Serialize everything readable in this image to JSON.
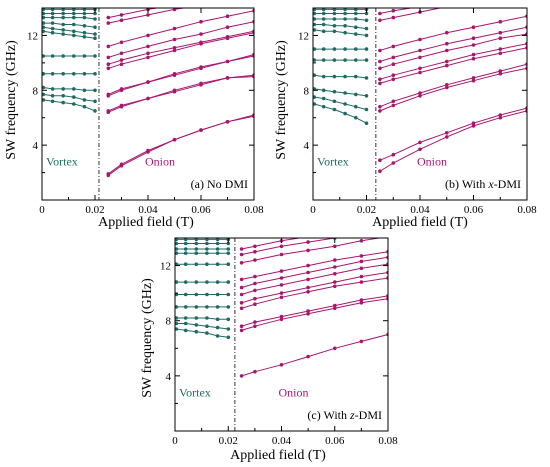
{
  "figure": {
    "x_axis_label": "Applied field (T)",
    "y_axis_label": "SW frequency (GHz)",
    "colors": {
      "vortex": "#1f6b63",
      "onion": "#a8166f",
      "axis": "#000000"
    }
  },
  "chart_data": [
    {
      "type": "line",
      "panel_label": "(a) No DMI",
      "region_labels": {
        "vortex": "Vortex",
        "onion": "Onion"
      },
      "xlim": [
        0,
        0.08
      ],
      "ylim": [
        0,
        14
      ],
      "xticks": [
        "0",
        "0.02",
        "0.04",
        "0.06",
        "0.08"
      ],
      "yticks": [
        "4",
        "8",
        "12"
      ],
      "transition_field": 0.0215,
      "vortex_x": [
        0.0005,
        0.004,
        0.008,
        0.012,
        0.016,
        0.02
      ],
      "vortex_series": [
        [
          13.9,
          13.9,
          13.9,
          13.9,
          13.9,
          13.9
        ],
        [
          13.6,
          13.6,
          13.6,
          13.6,
          13.6,
          13.6
        ],
        [
          13.3,
          13.3,
          13.3,
          13.3,
          13.3,
          13.2
        ],
        [
          12.9,
          12.9,
          12.8,
          12.8,
          12.7,
          12.6
        ],
        [
          12.6,
          12.5,
          12.4,
          12.3,
          12.2,
          12.1
        ],
        [
          12.3,
          12.2,
          12.1,
          12.0,
          11.9,
          11.8
        ],
        [
          10.5,
          10.5,
          10.5,
          10.5,
          10.5,
          10.5
        ],
        [
          9.2,
          9.2,
          9.2,
          9.2,
          9.2,
          9.2
        ],
        [
          8.2,
          8.1,
          8.1,
          8.1,
          8.0,
          8.0
        ],
        [
          7.7,
          7.6,
          7.6,
          7.5,
          7.3,
          7.2
        ],
        [
          7.3,
          7.2,
          7.1,
          7.0,
          6.8,
          6.5
        ]
      ],
      "onion_x": [
        0.025,
        0.03,
        0.04,
        0.05,
        0.06,
        0.07,
        0.08
      ],
      "onion_series": [
        [
          1.8,
          2.5,
          3.5,
          4.4,
          5.1,
          5.7,
          6.2
        ],
        [
          1.9,
          2.6,
          3.6,
          4.4,
          5.1,
          5.7,
          6.1
        ],
        [
          6.4,
          6.8,
          7.4,
          7.9,
          8.4,
          8.9,
          9.0
        ],
        [
          6.5,
          6.9,
          7.4,
          8.0,
          8.5,
          8.9,
          9.1
        ],
        [
          7.6,
          8.0,
          8.6,
          9.1,
          9.6,
          10.1,
          10.5
        ],
        [
          7.7,
          8.1,
          8.6,
          9.2,
          9.7,
          10.1,
          10.6
        ],
        [
          9.6,
          9.9,
          10.4,
          10.9,
          11.4,
          11.8,
          12.2
        ],
        [
          9.9,
          10.2,
          10.7,
          11.1,
          11.5,
          11.9,
          12.3
        ],
        [
          10.4,
          10.7,
          11.2,
          11.7,
          12.1,
          12.6,
          13.0
        ],
        [
          11.2,
          11.5,
          12.0,
          12.5,
          13.0,
          13.4,
          13.8
        ],
        [
          12.9,
          13.1,
          13.5,
          13.9,
          14.2,
          14.5,
          14.8
        ],
        [
          13.3,
          13.5,
          13.9,
          14.2,
          14.5,
          14.8,
          15.1
        ]
      ]
    },
    {
      "type": "line",
      "panel_label": "(b) With x-DMI",
      "region_labels": {
        "vortex": "Vortex",
        "onion": "Onion"
      },
      "xlim": [
        0,
        0.08
      ],
      "ylim": [
        0,
        14
      ],
      "xticks": [
        "0",
        "0.02",
        "0.04",
        "0.06",
        "0.08"
      ],
      "yticks": [
        "4",
        "8",
        "12"
      ],
      "transition_field": 0.0235,
      "vortex_x": [
        0.0005,
        0.004,
        0.008,
        0.012,
        0.016,
        0.02
      ],
      "vortex_series": [
        [
          13.9,
          13.9,
          13.9,
          13.9,
          13.9,
          13.9
        ],
        [
          13.6,
          13.6,
          13.6,
          13.6,
          13.6,
          13.6
        ],
        [
          13.2,
          13.2,
          13.2,
          13.2,
          13.2,
          13.1
        ],
        [
          12.8,
          12.8,
          12.7,
          12.7,
          12.6,
          12.5
        ],
        [
          12.4,
          12.3,
          12.3,
          12.2,
          12.1,
          12.0
        ],
        [
          11.0,
          11.0,
          11.0,
          11.0,
          11.0,
          11.0
        ],
        [
          10.2,
          10.2,
          10.2,
          10.2,
          10.2,
          10.2
        ],
        [
          9.1,
          9.0,
          9.0,
          9.0,
          9.0,
          8.9
        ],
        [
          8.1,
          8.0,
          7.9,
          7.8,
          7.7,
          7.6
        ],
        [
          7.5,
          7.4,
          7.2,
          7.0,
          6.8,
          6.6
        ],
        [
          7.0,
          6.8,
          6.6,
          6.3,
          6.0,
          5.6
        ]
      ],
      "onion_x": [
        0.025,
        0.03,
        0.04,
        0.05,
        0.06,
        0.07,
        0.08
      ],
      "onion_series": [
        [
          2.1,
          2.7,
          3.7,
          4.6,
          5.4,
          6.0,
          6.5
        ],
        [
          2.9,
          3.3,
          4.2,
          4.9,
          5.6,
          6.2,
          6.7
        ],
        [
          6.5,
          6.9,
          7.6,
          8.2,
          8.7,
          9.2,
          9.6
        ],
        [
          6.8,
          7.2,
          7.8,
          8.4,
          8.9,
          9.4,
          9.9
        ],
        [
          8.5,
          8.8,
          9.3,
          9.8,
          10.3,
          10.7,
          11.1
        ],
        [
          8.8,
          9.1,
          9.6,
          10.1,
          10.6,
          11.0,
          11.4
        ],
        [
          9.6,
          9.9,
          10.4,
          10.9,
          11.3,
          11.8,
          12.1
        ],
        [
          10.1,
          10.4,
          10.9,
          11.4,
          11.8,
          12.2,
          12.6
        ],
        [
          10.9,
          11.2,
          11.7,
          12.2,
          12.6,
          13.0,
          13.4
        ],
        [
          13.1,
          13.3,
          13.7,
          14.1,
          14.4,
          14.7,
          15.0
        ],
        [
          13.6,
          13.8,
          14.1,
          14.4,
          14.7,
          15.0,
          15.3
        ]
      ]
    },
    {
      "type": "line",
      "panel_label": "(c) With z-DMI",
      "region_labels": {
        "vortex": "Vortex",
        "onion": "Onion"
      },
      "xlim": [
        0,
        0.08
      ],
      "ylim": [
        0,
        14
      ],
      "xticks": [
        "0",
        "0.02",
        "0.04",
        "0.06",
        "0.08"
      ],
      "yticks": [
        "4",
        "8",
        "12"
      ],
      "transition_field": 0.0225,
      "vortex_x": [
        0.0005,
        0.004,
        0.008,
        0.012,
        0.016,
        0.02
      ],
      "vortex_series": [
        [
          13.9,
          13.9,
          13.9,
          13.9,
          13.9,
          13.9
        ],
        [
          13.6,
          13.6,
          13.6,
          13.6,
          13.6,
          13.6
        ],
        [
          13.2,
          13.2,
          13.2,
          13.2,
          13.2,
          13.2
        ],
        [
          12.9,
          12.9,
          12.9,
          12.9,
          12.9,
          12.9
        ],
        [
          12.1,
          12.1,
          12.1,
          12.1,
          12.1,
          12.1
        ],
        [
          10.8,
          10.8,
          10.8,
          10.8,
          10.8,
          10.8
        ],
        [
          9.9,
          9.9,
          9.9,
          9.9,
          9.9,
          9.9
        ],
        [
          9.0,
          9.0,
          9.0,
          9.0,
          9.0,
          9.0
        ],
        [
          8.2,
          8.2,
          8.2,
          8.2,
          8.1,
          8.1
        ],
        [
          7.8,
          7.8,
          7.7,
          7.6,
          7.5,
          7.4
        ],
        [
          7.4,
          7.3,
          7.2,
          7.1,
          6.9,
          6.8
        ]
      ],
      "onion_x": [
        0.025,
        0.03,
        0.04,
        0.05,
        0.06,
        0.07,
        0.08
      ],
      "onion_series": [
        [
          4.0,
          4.3,
          4.8,
          5.4,
          6.0,
          6.5,
          7.0
        ],
        [
          7.3,
          7.6,
          8.1,
          8.5,
          8.9,
          9.3,
          9.6
        ],
        [
          7.6,
          7.9,
          8.3,
          8.7,
          9.1,
          9.5,
          9.8
        ],
        [
          8.9,
          9.2,
          9.7,
          10.1,
          10.5,
          10.8,
          11.1
        ],
        [
          9.3,
          9.6,
          10.0,
          10.4,
          10.8,
          11.2,
          11.5
        ],
        [
          9.9,
          10.2,
          10.6,
          11.0,
          11.4,
          11.8,
          12.1
        ],
        [
          10.4,
          10.7,
          11.1,
          11.5,
          11.9,
          12.3,
          12.6
        ],
        [
          11.0,
          11.2,
          11.6,
          12.0,
          12.4,
          12.7,
          13.0
        ],
        [
          12.2,
          12.4,
          12.8,
          13.1,
          13.4,
          13.8,
          14.1
        ],
        [
          12.8,
          13.0,
          13.4,
          13.7,
          14.0,
          14.3,
          14.6
        ],
        [
          13.2,
          13.4,
          13.8,
          14.1,
          14.4,
          14.7,
          15.0
        ]
      ]
    }
  ]
}
